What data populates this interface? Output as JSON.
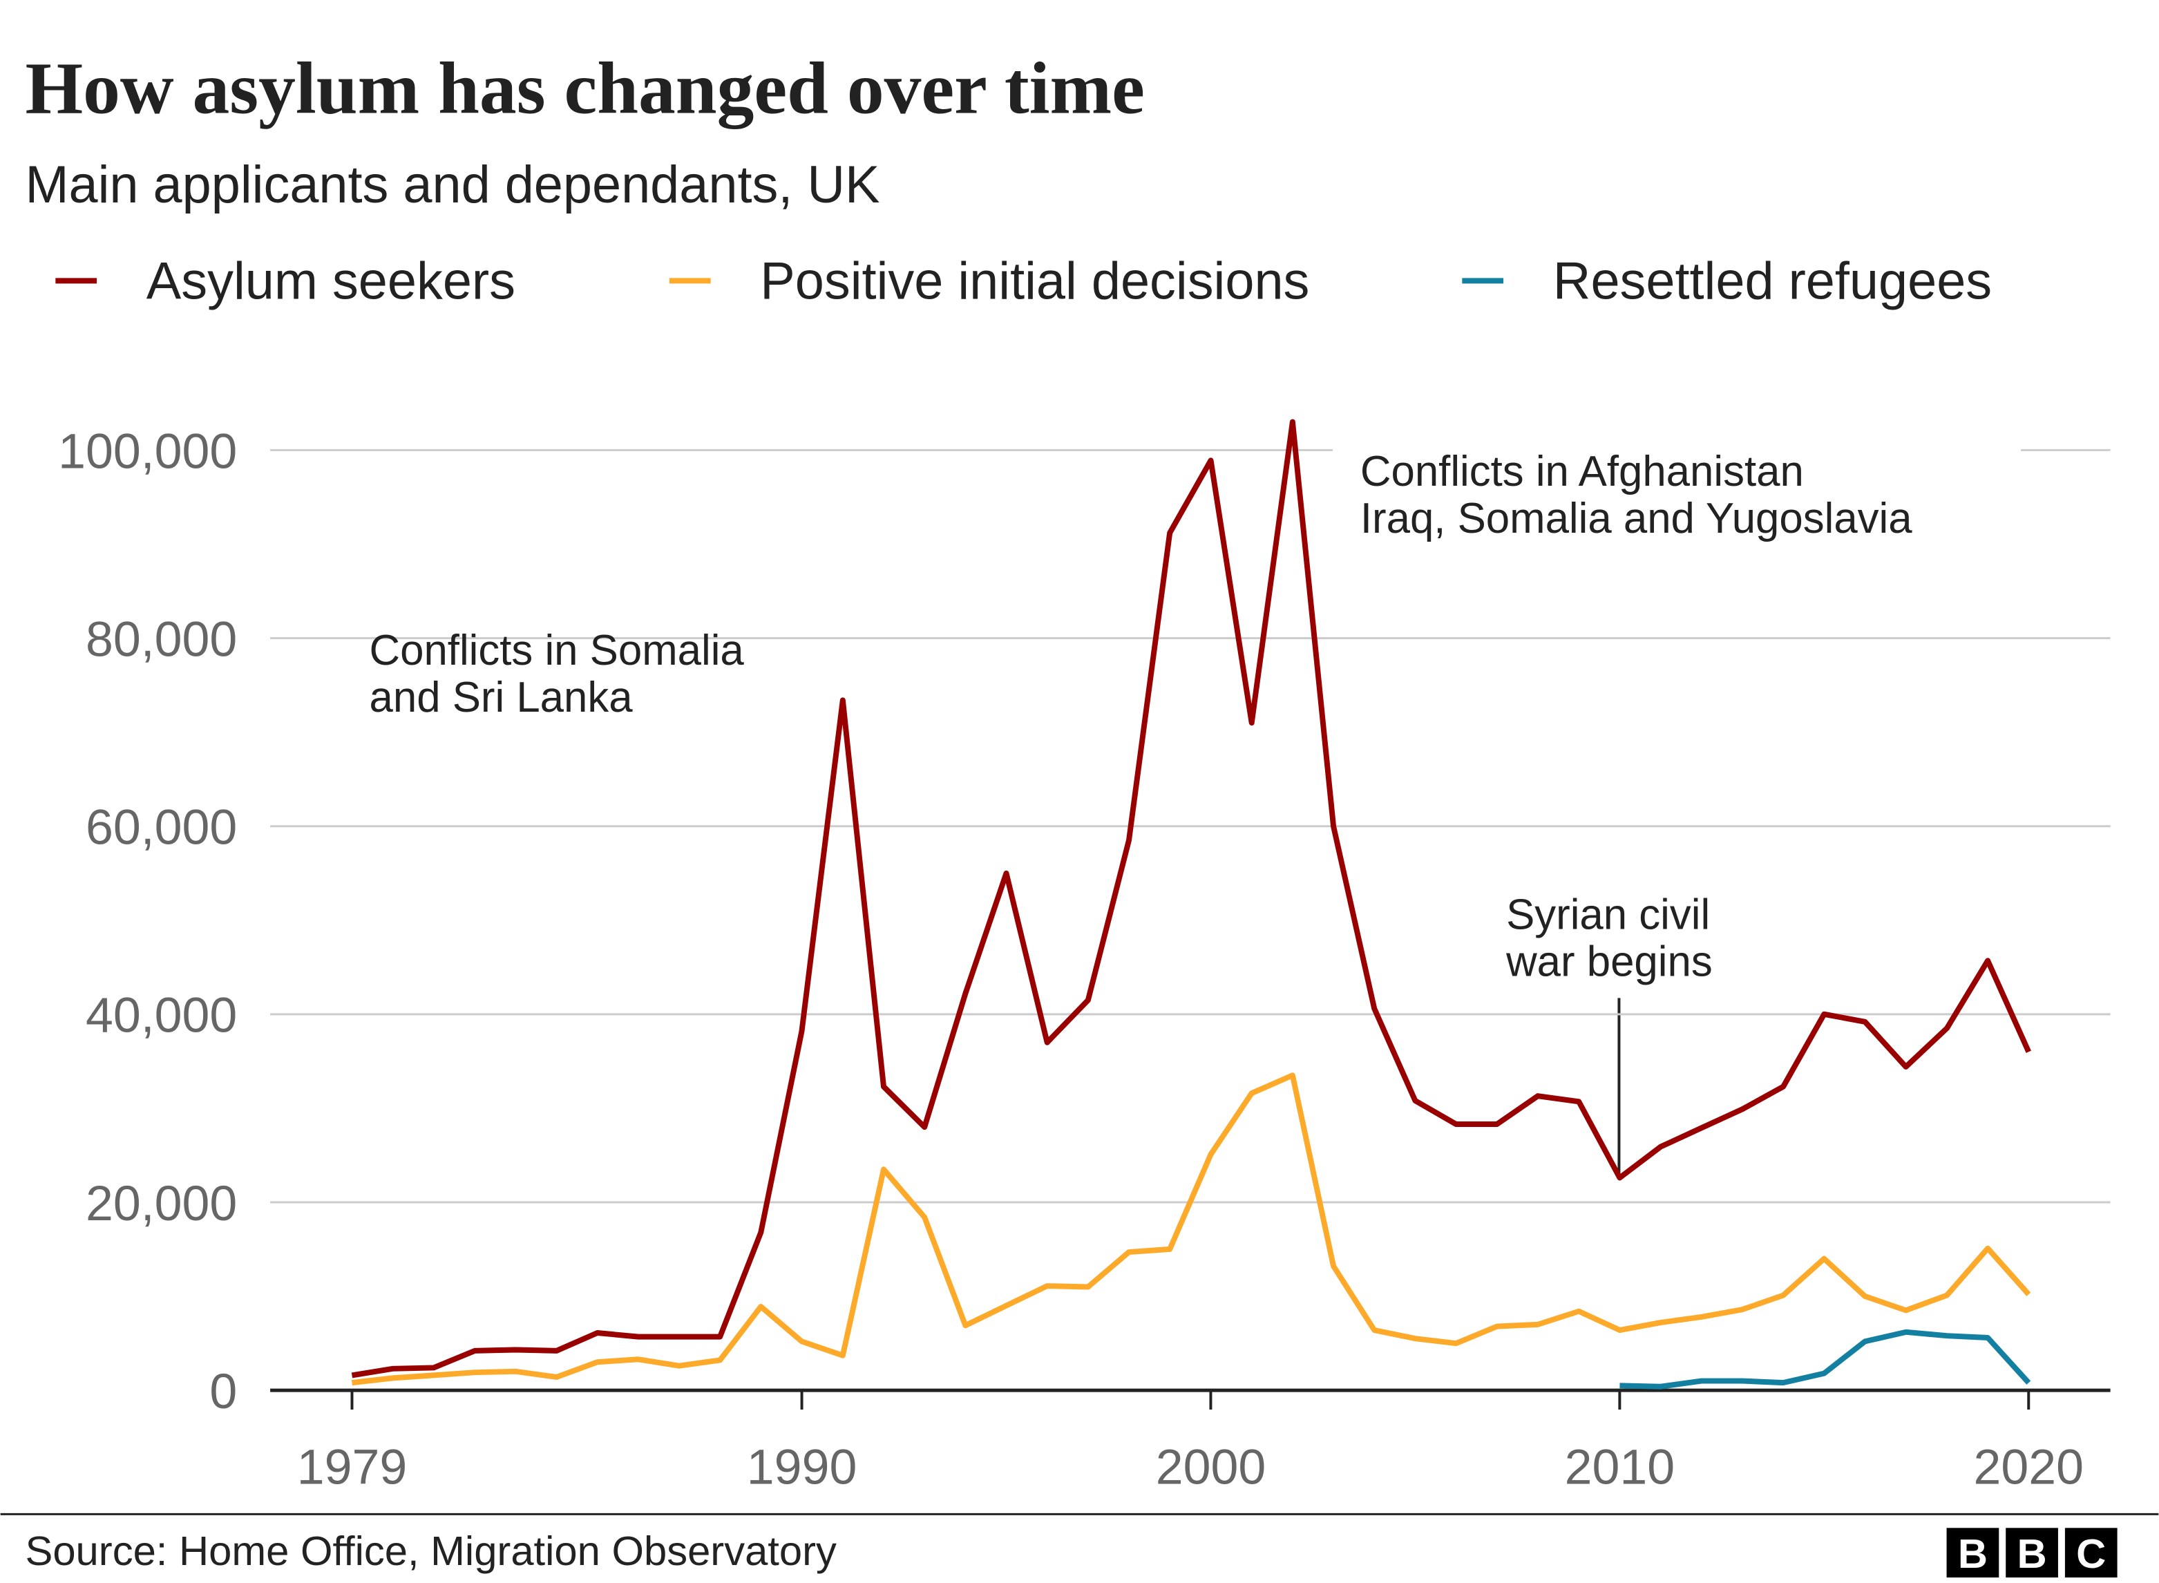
{
  "chart_data": {
    "type": "line",
    "title": "How asylum has changed over time",
    "subtitle": "Main applicants and dependants, UK",
    "x": [
      1979,
      1980,
      1981,
      1982,
      1983,
      1984,
      1985,
      1986,
      1987,
      1988,
      1989,
      1990,
      1991,
      1992,
      1993,
      1994,
      1995,
      1996,
      1997,
      1998,
      1999,
      2000,
      2001,
      2002,
      2003,
      2004,
      2005,
      2006,
      2007,
      2008,
      2009,
      2010,
      2011,
      2012,
      2013,
      2014,
      2015,
      2016,
      2017,
      2018,
      2019,
      2020
    ],
    "series": [
      {
        "name": "Asylum seekers",
        "color": "#990000",
        "values": [
          1600,
          2300,
          2400,
          4200,
          4300,
          4200,
          6100,
          5700,
          5700,
          5700,
          16800,
          38200,
          73400,
          32300,
          28000,
          42200,
          55000,
          37000,
          41500,
          58500,
          91200,
          98900,
          71000,
          103000,
          60000,
          40600,
          30800,
          28300,
          28300,
          31300,
          30700,
          22600,
          25900,
          27900,
          29900,
          32300,
          40000,
          39200,
          34400,
          38500,
          45700,
          36000
        ]
      },
      {
        "name": "Positive initial decisions",
        "color": "#fdaa2b",
        "values": [
          800,
          1300,
          1600,
          1900,
          2000,
          1400,
          3000,
          3300,
          2600,
          3200,
          8900,
          5200,
          3700,
          23500,
          18400,
          6900,
          9000,
          11100,
          11000,
          14700,
          15000,
          25100,
          31600,
          33500,
          13200,
          6400,
          5500,
          5000,
          6800,
          7000,
          8400,
          6400,
          7200,
          7800,
          8600,
          10100,
          14000,
          10000,
          8500,
          10100,
          15100,
          10200
        ]
      },
      {
        "name": "Resettled refugees",
        "color": "#1380a1",
        "values": [
          null,
          null,
          null,
          null,
          null,
          null,
          null,
          null,
          null,
          null,
          null,
          null,
          null,
          null,
          null,
          null,
          null,
          null,
          null,
          null,
          null,
          null,
          null,
          null,
          null,
          null,
          null,
          null,
          null,
          null,
          null,
          500,
          400,
          1000,
          1000,
          800,
          1800,
          5200,
          6200,
          5800,
          5600,
          800
        ]
      }
    ],
    "xlim": [
      1977,
      2022
    ],
    "xticks": [
      1979,
      1990,
      2000,
      2010,
      2020
    ],
    "ylim": [
      0,
      110000
    ],
    "yticks": [
      0,
      {
        "value": 20000,
        "label": "20,000"
      },
      {
        "value": 40000,
        "label": "40,000"
      },
      {
        "value": 60000,
        "label": "60,000"
      },
      {
        "value": 80000,
        "label": "80,000"
      },
      {
        "value": 100000,
        "label": "100,000"
      }
    ],
    "grid": true,
    "legend": "top",
    "annotations": [
      {
        "lines": [
          "Conflicts in Somalia",
          "and Sri Lanka"
        ]
      },
      {
        "lines": [
          "Conflicts in Afghanistan",
          "Iraq, Somalia and Yugoslavia"
        ]
      },
      {
        "lines": [
          "Syrian civil",
          "war begins"
        ]
      }
    ],
    "source": "Source: Home Office, Migration Observatory",
    "logo": [
      "B",
      "B",
      "C"
    ]
  }
}
